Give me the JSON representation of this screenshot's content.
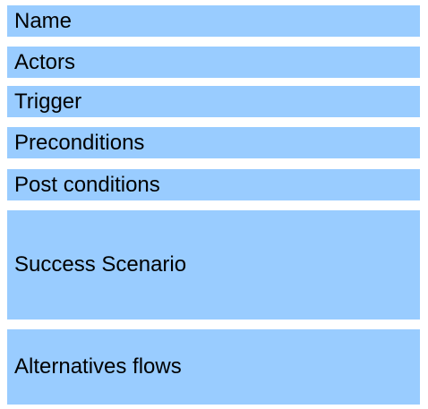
{
  "fields": [
    {
      "label": "Name"
    },
    {
      "label": "Actors"
    },
    {
      "label": "Trigger"
    },
    {
      "label": "Preconditions"
    },
    {
      "label": "Post conditions"
    },
    {
      "label": "Success Scenario"
    },
    {
      "label": "Alternatives flows"
    }
  ],
  "colors": {
    "row_background": "#99ccff",
    "text": "#000000"
  }
}
